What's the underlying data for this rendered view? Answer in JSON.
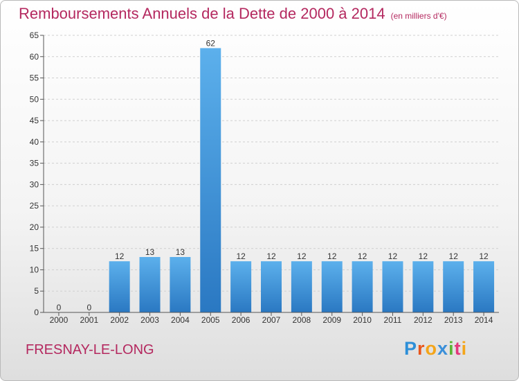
{
  "title": "Remboursements Annuels de la Dette de 2000 à 2014",
  "unit": "(en milliers d'€)",
  "commune": "FRESNAY-LE-LONG",
  "logo": {
    "letters": [
      "P",
      "r",
      "o",
      "x",
      "i",
      "t",
      "i"
    ],
    "colors": [
      "#2d8fd8",
      "#e9561c",
      "#f4a51a",
      "#3a8fd9",
      "#5bb535",
      "#e2387b",
      "#f4a51a"
    ]
  },
  "colors": {
    "title": "#b4285f",
    "bar_light": "#5cb0ec",
    "bar_dark": "#2a78c2",
    "grid": "#cfcfcf",
    "axis": "#555555"
  },
  "chart_data": {
    "type": "bar",
    "categories": [
      "2000",
      "2001",
      "2002",
      "2003",
      "2004",
      "2005",
      "2006",
      "2007",
      "2008",
      "2009",
      "2010",
      "2011",
      "2012",
      "2013",
      "2014"
    ],
    "values": [
      0,
      0,
      12,
      13,
      13,
      62,
      12,
      12,
      12,
      12,
      12,
      12,
      12,
      12,
      12
    ],
    "data_labels": [
      "0",
      "0",
      "12",
      "13",
      "13",
      "62",
      "12",
      "12",
      "12",
      "12",
      "12",
      "12",
      "12",
      "12",
      "12"
    ],
    "ylim": [
      0,
      65
    ],
    "yticks": [
      0,
      5,
      10,
      15,
      20,
      25,
      30,
      35,
      40,
      45,
      50,
      55,
      60,
      65
    ],
    "xlabel": "",
    "ylabel": "",
    "grid": true,
    "legend": "none"
  }
}
